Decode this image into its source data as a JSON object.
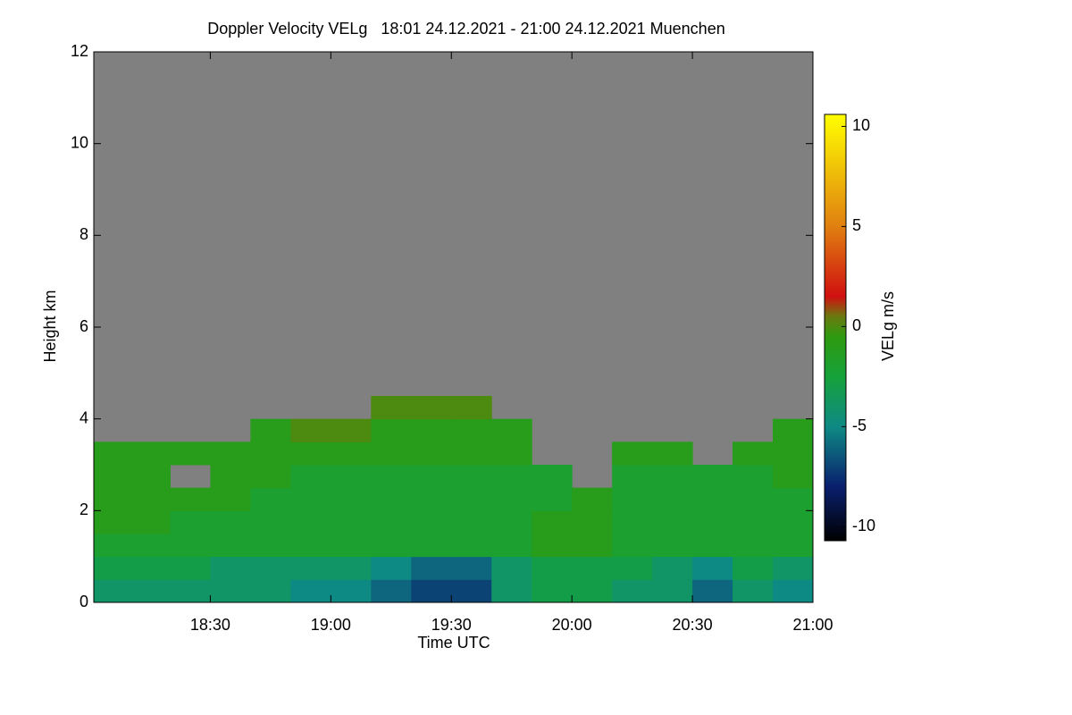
{
  "chart_data": {
    "type": "heatmap",
    "title": "Doppler Velocity VELg   18:01 24.12.2021 - 21:00 24.12.2021 Muenchen",
    "x_label": "Time UTC",
    "y_label": "Height km",
    "colorbar_label": "VELg m/s",
    "background": "#808080",
    "xbins": [
      1,
      10,
      20,
      30,
      40,
      50,
      60,
      70,
      80,
      90,
      100,
      110,
      120,
      130,
      140,
      150,
      160,
      170,
      180
    ],
    "ybins": [
      0,
      0.5,
      1,
      1.5,
      2,
      2.5,
      3,
      3.5,
      4,
      4.5
    ],
    "z": [
      [
        -4,
        -4,
        -4,
        -4,
        -4,
        -5,
        -5,
        -6,
        -7,
        -7,
        -4,
        -3,
        -3,
        -4,
        -4,
        -6,
        -4,
        -5
      ],
      [
        -3,
        -3,
        -3,
        -4,
        -4,
        -4,
        -4,
        -5,
        -6,
        -6,
        -4,
        -3,
        -3,
        -3,
        -4,
        -5,
        -3,
        -4
      ],
      [
        -2,
        -2,
        -2,
        -2,
        -2,
        -2,
        -2,
        -2,
        -2,
        -2,
        -2,
        -1,
        -1,
        -2,
        -2,
        -2,
        -2,
        -2
      ],
      [
        -1,
        -1,
        -2,
        -2,
        -2,
        -2,
        -2,
        -2,
        -2,
        -2,
        -2,
        -1,
        -1,
        -2,
        -2,
        -2,
        -2,
        -2
      ],
      [
        -1,
        -1,
        -1,
        -1,
        -2,
        -2,
        -2,
        -2,
        -2,
        -2,
        -2,
        -2,
        -1,
        -2,
        -2,
        -2,
        -2,
        -2
      ],
      [
        -1,
        -1,
        null,
        -1,
        -1,
        -2,
        -2,
        -2,
        -2,
        -2,
        -2,
        -2,
        null,
        -2,
        -2,
        -2,
        -2,
        -1
      ],
      [
        -1,
        -1,
        -1,
        -1,
        -1,
        -1,
        -1,
        -1,
        -1,
        -1,
        -1,
        null,
        null,
        -1,
        -1,
        null,
        -1,
        -1
      ],
      [
        null,
        null,
        null,
        null,
        -1,
        0,
        0,
        -1,
        -1,
        -1,
        -1,
        null,
        null,
        null,
        null,
        null,
        null,
        -1
      ],
      [
        null,
        null,
        null,
        null,
        null,
        null,
        null,
        0,
        0,
        0,
        null,
        null,
        null,
        null,
        null,
        null,
        null,
        null
      ]
    ],
    "xlim": [
      1,
      180
    ],
    "xticks": [
      {
        "value": 30,
        "label": "18:30"
      },
      {
        "value": 60,
        "label": "19:00"
      },
      {
        "value": 90,
        "label": "19:30"
      },
      {
        "value": 120,
        "label": "20:00"
      },
      {
        "value": 150,
        "label": "20:30"
      },
      {
        "value": 180,
        "label": "21:00"
      }
    ],
    "ylim": [
      0,
      12
    ],
    "yticks": [
      0,
      2,
      4,
      6,
      8,
      10,
      12
    ],
    "zlim": [
      -10.7,
      10.6
    ],
    "zticks": [
      10,
      5,
      0,
      -5,
      -10
    ],
    "colorscale": [
      [
        -10.7,
        "#000000"
      ],
      [
        -8,
        "#0a1f6e"
      ],
      [
        -5,
        "#0e8a84"
      ],
      [
        -2.5,
        "#16a23a"
      ],
      [
        -0.5,
        "#2e9a10"
      ],
      [
        0.5,
        "#6a7a10"
      ],
      [
        1.5,
        "#d01010"
      ],
      [
        5,
        "#e08010"
      ],
      [
        10.6,
        "#ffff00"
      ]
    ]
  }
}
